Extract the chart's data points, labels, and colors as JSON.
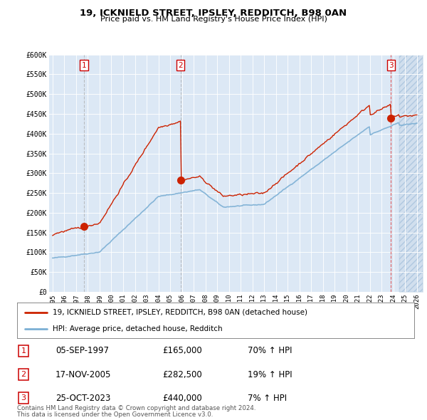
{
  "title": "19, ICKNIELD STREET, IPSLEY, REDDITCH, B98 0AN",
  "subtitle": "Price paid vs. HM Land Registry's House Price Index (HPI)",
  "legend_line1": "19, ICKNIELD STREET, IPSLEY, REDDITCH, B98 0AN (detached house)",
  "legend_line2": "HPI: Average price, detached house, Redditch",
  "footer1": "Contains HM Land Registry data © Crown copyright and database right 2024.",
  "footer2": "This data is licensed under the Open Government Licence v3.0.",
  "transactions": [
    {
      "num": 1,
      "date": "05-SEP-1997",
      "price": 165000,
      "hpi_pct": "70% ↑ HPI",
      "x_year": 1997.68
    },
    {
      "num": 2,
      "date": "17-NOV-2005",
      "price": 282500,
      "hpi_pct": "19% ↑ HPI",
      "x_year": 2005.88
    },
    {
      "num": 3,
      "date": "25-OCT-2023",
      "price": 440000,
      "hpi_pct": "7% ↑ HPI",
      "x_year": 2023.8
    }
  ],
  "hpi_color": "#7bafd4",
  "price_color": "#cc2200",
  "vline_colors": [
    "#aaaaaa",
    "#aaaaaa",
    "#dd2222"
  ],
  "background_chart": "#dce8f5",
  "background_fig": "#ffffff",
  "hatch_color": "#c8d8e8",
  "ylim": [
    0,
    600000
  ],
  "xlim_left": 1994.7,
  "xlim_right": 2026.5,
  "yticks": [
    0,
    50000,
    100000,
    150000,
    200000,
    250000,
    300000,
    350000,
    400000,
    450000,
    500000,
    550000,
    600000
  ],
  "xticks": [
    1995,
    1996,
    1997,
    1998,
    1999,
    2000,
    2001,
    2002,
    2003,
    2004,
    2005,
    2006,
    2007,
    2008,
    2009,
    2010,
    2011,
    2012,
    2013,
    2014,
    2015,
    2016,
    2017,
    2018,
    2019,
    2020,
    2021,
    2022,
    2023,
    2024,
    2025,
    2026
  ]
}
